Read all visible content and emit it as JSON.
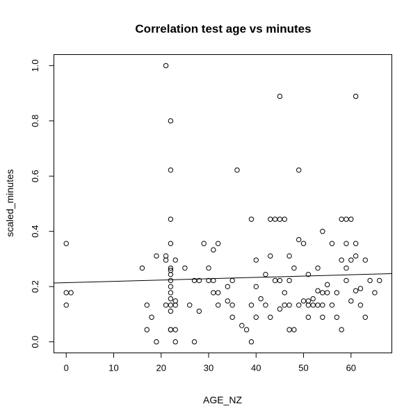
{
  "chart_data": {
    "type": "scatter",
    "title": "Correlation test age vs minutes",
    "xlabel": "AGE_NZ",
    "ylabel": "scaled_minutes",
    "xlim": [
      -2.6,
      68.6
    ],
    "ylim": [
      -0.04,
      1.04
    ],
    "xticks": [
      0,
      10,
      20,
      30,
      40,
      50,
      60
    ],
    "xtick_labels": [
      "0",
      "10",
      "20",
      "30",
      "40",
      "50",
      "60"
    ],
    "yticks": [
      0.0,
      0.2,
      0.4,
      0.6,
      0.8,
      1.0
    ],
    "ytick_labels": [
      "0.0",
      "0.2",
      "0.4",
      "0.6",
      "0.8",
      "1.0"
    ],
    "grid": false,
    "legend": "none",
    "regression_line": {
      "x": [
        -2.6,
        68.6
      ],
      "y": [
        0.213,
        0.247
      ]
    },
    "points": [
      [
        0,
        0.356
      ],
      [
        0,
        0.178
      ],
      [
        0,
        0.133
      ],
      [
        1,
        0.178
      ],
      [
        16,
        0.267
      ],
      [
        17,
        0.133
      ],
      [
        17,
        0.044
      ],
      [
        18,
        0.089
      ],
      [
        19,
        0.311
      ],
      [
        19,
        0.0
      ],
      [
        21,
        1.0
      ],
      [
        21,
        0.311
      ],
      [
        21,
        0.296
      ],
      [
        21,
        0.133
      ],
      [
        22,
        0.8
      ],
      [
        22,
        0.622
      ],
      [
        22,
        0.444
      ],
      [
        22,
        0.356
      ],
      [
        22,
        0.267
      ],
      [
        22,
        0.259
      ],
      [
        22,
        0.244
      ],
      [
        22,
        0.222
      ],
      [
        22,
        0.2
      ],
      [
        22,
        0.178
      ],
      [
        22,
        0.156
      ],
      [
        22,
        0.133
      ],
      [
        22,
        0.111
      ],
      [
        22,
        0.044
      ],
      [
        22,
        0.044
      ],
      [
        23,
        0.296
      ],
      [
        23,
        0.148
      ],
      [
        23,
        0.133
      ],
      [
        23,
        0.044
      ],
      [
        23,
        0.0
      ],
      [
        25,
        0.267
      ],
      [
        26,
        0.133
      ],
      [
        27,
        0.222
      ],
      [
        27,
        0.0
      ],
      [
        28,
        0.222
      ],
      [
        28,
        0.111
      ],
      [
        29,
        0.356
      ],
      [
        30,
        0.267
      ],
      [
        30,
        0.222
      ],
      [
        31,
        0.333
      ],
      [
        31,
        0.222
      ],
      [
        31,
        0.178
      ],
      [
        32,
        0.356
      ],
      [
        32,
        0.178
      ],
      [
        32,
        0.133
      ],
      [
        34,
        0.2
      ],
      [
        34,
        0.148
      ],
      [
        35,
        0.222
      ],
      [
        35,
        0.133
      ],
      [
        35,
        0.089
      ],
      [
        36,
        0.622
      ],
      [
        37,
        0.059
      ],
      [
        38,
        0.044
      ],
      [
        39,
        0.444
      ],
      [
        39,
        0.133
      ],
      [
        39,
        0.0
      ],
      [
        40,
        0.296
      ],
      [
        40,
        0.2
      ],
      [
        40,
        0.089
      ],
      [
        41,
        0.156
      ],
      [
        42,
        0.244
      ],
      [
        42,
        0.133
      ],
      [
        43,
        0.444
      ],
      [
        43,
        0.311
      ],
      [
        43,
        0.089
      ],
      [
        44,
        0.444
      ],
      [
        44,
        0.222
      ],
      [
        45,
        0.889
      ],
      [
        45,
        0.444
      ],
      [
        45,
        0.222
      ],
      [
        45,
        0.119
      ],
      [
        46,
        0.444
      ],
      [
        46,
        0.178
      ],
      [
        46,
        0.133
      ],
      [
        47,
        0.311
      ],
      [
        47,
        0.222
      ],
      [
        47,
        0.133
      ],
      [
        47,
        0.044
      ],
      [
        48,
        0.267
      ],
      [
        48,
        0.044
      ],
      [
        49,
        0.622
      ],
      [
        49,
        0.37
      ],
      [
        49,
        0.133
      ],
      [
        50,
        0.356
      ],
      [
        50,
        0.148
      ],
      [
        51,
        0.244
      ],
      [
        51,
        0.148
      ],
      [
        51,
        0.133
      ],
      [
        51,
        0.089
      ],
      [
        52,
        0.156
      ],
      [
        52,
        0.133
      ],
      [
        53,
        0.267
      ],
      [
        53,
        0.185
      ],
      [
        53,
        0.133
      ],
      [
        54,
        0.4
      ],
      [
        54,
        0.178
      ],
      [
        54,
        0.133
      ],
      [
        54,
        0.089
      ],
      [
        55,
        0.207
      ],
      [
        55,
        0.178
      ],
      [
        56,
        0.356
      ],
      [
        56,
        0.133
      ],
      [
        57,
        0.178
      ],
      [
        57,
        0.089
      ],
      [
        58,
        0.444
      ],
      [
        58,
        0.296
      ],
      [
        58,
        0.044
      ],
      [
        59,
        0.444
      ],
      [
        59,
        0.356
      ],
      [
        59,
        0.267
      ],
      [
        59,
        0.222
      ],
      [
        60,
        0.444
      ],
      [
        60,
        0.296
      ],
      [
        60,
        0.148
      ],
      [
        61,
        0.889
      ],
      [
        61,
        0.356
      ],
      [
        61,
        0.311
      ],
      [
        61,
        0.185
      ],
      [
        62,
        0.193
      ],
      [
        62,
        0.133
      ],
      [
        63,
        0.296
      ],
      [
        63,
        0.089
      ],
      [
        64,
        0.222
      ],
      [
        65,
        0.178
      ],
      [
        66,
        0.222
      ]
    ]
  }
}
